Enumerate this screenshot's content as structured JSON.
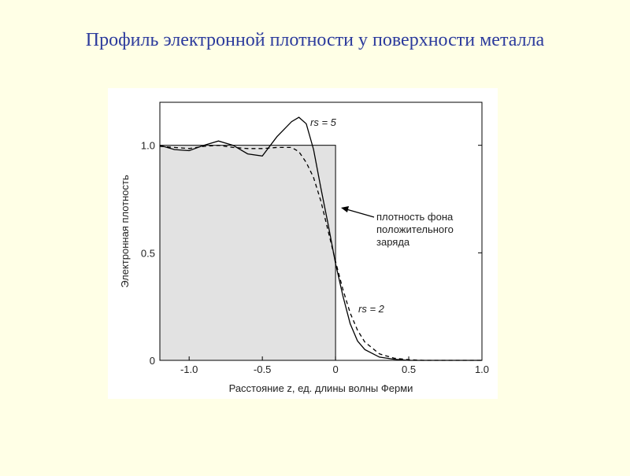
{
  "title": "Профиль электронной плотности у поверхности металла",
  "chart_data": {
    "type": "line",
    "x_label": "Расстояние z, ед. длины волны Ферми",
    "y_label": "Электронная плотность",
    "x": [
      -1.2,
      -1.1,
      -1.0,
      -0.9,
      -0.8,
      -0.7,
      -0.6,
      -0.5,
      -0.4,
      -0.3,
      -0.25,
      -0.2,
      -0.15,
      -0.1,
      -0.05,
      0,
      0.05,
      0.1,
      0.15,
      0.2,
      0.3,
      0.4,
      0.5,
      0.6,
      0.8,
      1.0
    ],
    "series": [
      {
        "name": "rs = 5",
        "color": "#000000",
        "dashed": false,
        "values": [
          1.0,
          0.98,
          0.975,
          1.0,
          1.02,
          1.0,
          0.96,
          0.95,
          1.04,
          1.11,
          1.13,
          1.1,
          0.98,
          0.8,
          0.63,
          0.45,
          0.3,
          0.17,
          0.09,
          0.05,
          0.015,
          0.005,
          0,
          0,
          0,
          0
        ]
      },
      {
        "name": "rs = 2",
        "color": "#000000",
        "dashed": true,
        "values": [
          0.995,
          0.99,
          0.985,
          0.995,
          1.0,
          0.99,
          0.985,
          0.985,
          0.99,
          0.99,
          0.97,
          0.92,
          0.85,
          0.74,
          0.6,
          0.46,
          0.33,
          0.22,
          0.14,
          0.085,
          0.03,
          0.01,
          0.003,
          0,
          0,
          0
        ]
      }
    ],
    "background": {
      "value": 1,
      "edge": 0,
      "color": "#e2e2e2",
      "label": [
        "плотность фона",
        "положительного",
        "заряда"
      ]
    },
    "xlim": [
      -1.2,
      1.0
    ],
    "xticks": [
      {
        "value": -1,
        "label": "-1.0"
      },
      -0.5,
      0,
      0.5,
      {
        "value": 1,
        "label": "1.0"
      }
    ],
    "ylim": [
      0,
      1.2
    ],
    "yticks": [
      0,
      0.5,
      {
        "value": 1,
        "label": "1.0"
      }
    ]
  }
}
